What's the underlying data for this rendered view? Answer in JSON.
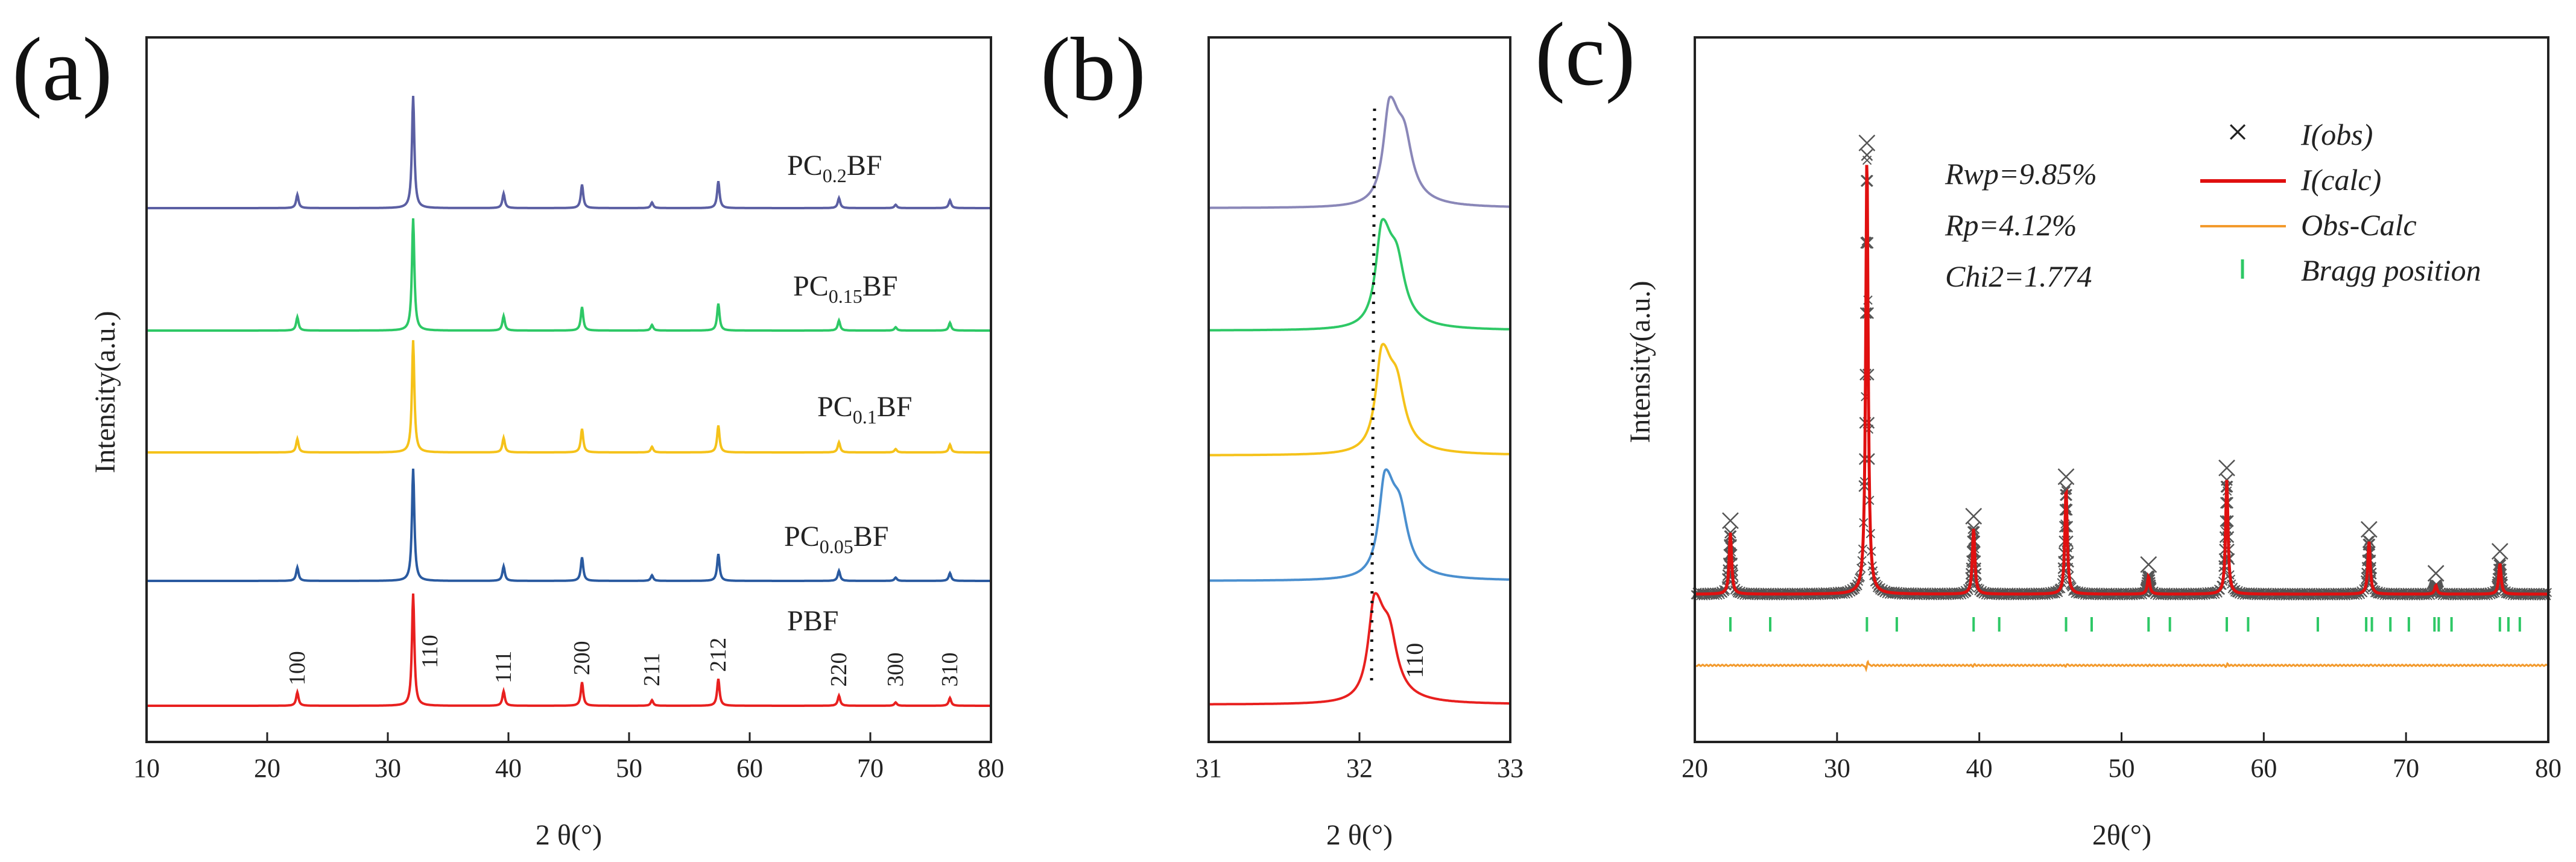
{
  "chart_data": [
    {
      "panel_label": "(a)",
      "type": "line",
      "title": "",
      "xlabel": "2 θ(°)",
      "ylabel": "Intensity(a.u.)",
      "xlim": [
        10,
        80
      ],
      "xticks": [
        "10",
        "20",
        "30",
        "40",
        "50",
        "60",
        "70",
        "80"
      ],
      "series": [
        {
          "name": "PBF",
          "label_main": "PBF",
          "label_sub": "",
          "label_tail": "",
          "color": "#e8201f",
          "peak_scale": 1.0
        },
        {
          "name": "PC0.05BF",
          "label_main": "PC",
          "label_sub": "0.05",
          "label_tail": "BF",
          "color": "#2a5aa0",
          "peak_scale": 1.0
        },
        {
          "name": "PC0.1BF",
          "label_main": "PC",
          "label_sub": "0.1",
          "label_tail": "BF",
          "color": "#f5c21a",
          "peak_scale": 1.0
        },
        {
          "name": "PC0.15BF",
          "label_main": "PC",
          "label_sub": "0.15",
          "label_tail": "BF",
          "color": "#2ec866",
          "peak_scale": 1.0
        },
        {
          "name": "PC0.2BF",
          "label_main": "PC",
          "label_sub": "0.2",
          "label_tail": "BF",
          "color": "#5b5fa3",
          "peak_scale": 1.0
        }
      ],
      "peaks": [
        {
          "x": 22.5,
          "h": 0.12,
          "hkl": "100"
        },
        {
          "x": 32.1,
          "h": 1.0,
          "hkl": "110"
        },
        {
          "x": 39.6,
          "h": 0.13,
          "hkl": "111"
        },
        {
          "x": 46.1,
          "h": 0.21,
          "hkl": "200"
        },
        {
          "x": 51.9,
          "h": 0.05,
          "hkl": "211"
        },
        {
          "x": 57.4,
          "h": 0.24,
          "hkl": "212"
        },
        {
          "x": 67.4,
          "h": 0.09,
          "hkl": "220"
        },
        {
          "x": 72.1,
          "h": 0.03,
          "hkl": "300"
        },
        {
          "x": 76.6,
          "h": 0.07,
          "hkl": "310"
        }
      ]
    },
    {
      "panel_label": "(b)",
      "type": "line",
      "title": "",
      "xlabel": "2 θ(°)",
      "ylabel": "",
      "xlim": [
        31,
        33
      ],
      "xticks": [
        "31",
        "32",
        "33"
      ],
      "annotation": "110",
      "series": [
        {
          "name": "PBF",
          "color": "#e8201f",
          "center": 32.1
        },
        {
          "name": "PC0.05BF",
          "color": "#4a8fcf",
          "center": 32.17
        },
        {
          "name": "PC0.1BF",
          "color": "#f5c21a",
          "center": 32.15
        },
        {
          "name": "PC0.15BF",
          "color": "#2ec866",
          "center": 32.15
        },
        {
          "name": "PC0.2BF",
          "color": "#8a87b8",
          "center": 32.2
        }
      ]
    },
    {
      "panel_label": "(c)",
      "type": "line",
      "title": "",
      "xlabel": "2θ(°)",
      "ylabel": "Intensity(a.u.)",
      "xlim": [
        20,
        80
      ],
      "xticks": [
        "20",
        "30",
        "40",
        "50",
        "60",
        "70",
        "80"
      ],
      "fit_stats": [
        "Rwp=9.85%",
        "Rp=4.12%",
        "Chi2=1.774"
      ],
      "legend": [
        {
          "label": "I(obs)",
          "color": "#444444",
          "marker": "×"
        },
        {
          "label": "I(calc)",
          "color": "#e01010",
          "marker": "line"
        },
        {
          "label": "Obs-Calc",
          "color": "#f39a2c",
          "marker": "line"
        },
        {
          "label": "Bragg position",
          "color": "#2ec866",
          "marker": "|"
        }
      ],
      "peaks": [
        {
          "x": 22.5,
          "h": 0.14
        },
        {
          "x": 32.1,
          "h": 1.0
        },
        {
          "x": 39.6,
          "h": 0.15
        },
        {
          "x": 46.1,
          "h": 0.24
        },
        {
          "x": 51.9,
          "h": 0.04
        },
        {
          "x": 57.4,
          "h": 0.26
        },
        {
          "x": 67.4,
          "h": 0.12
        },
        {
          "x": 72.1,
          "h": 0.02
        },
        {
          "x": 76.6,
          "h": 0.07
        }
      ],
      "bragg_positions": [
        22.5,
        25.3,
        32.1,
        34.2,
        39.6,
        41.4,
        46.1,
        47.9,
        51.9,
        53.4,
        57.4,
        58.9,
        63.8,
        67.2,
        67.6,
        68.9,
        70.2,
        72.0,
        72.3,
        73.2,
        76.6,
        77.2,
        78.0
      ]
    }
  ]
}
